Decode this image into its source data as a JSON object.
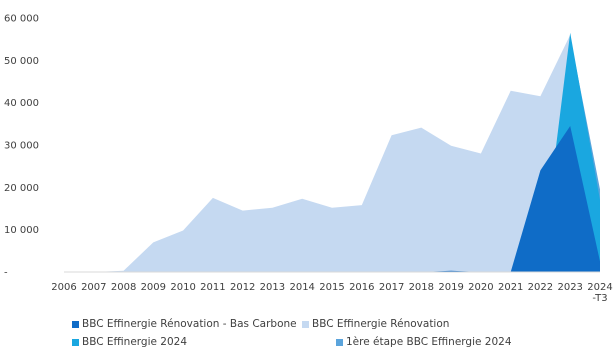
{
  "chart_data": {
    "type": "area",
    "x": [
      "2006",
      "2007",
      "2008",
      "2009",
      "2010",
      "2011",
      "2012",
      "2013",
      "2014",
      "2015",
      "2016",
      "2017",
      "2018",
      "2019",
      "2020",
      "2021",
      "2022",
      "2023",
      "2024\n-T3"
    ],
    "y_ticks": [
      "-",
      "10 000",
      "20 000",
      "30 000",
      "40 000",
      "50 000",
      "60 000"
    ],
    "ylim": [
      0,
      60000
    ],
    "series": [
      {
        "name": "BBC Effinergie Rénovation",
        "color": "#c5d9f1",
        "values": [
          0,
          0,
          300,
          7000,
          9800,
          17500,
          14500,
          15200,
          17300,
          15200,
          15800,
          32300,
          34100,
          29800,
          28000,
          42800,
          41500,
          56000,
          3500
        ]
      },
      {
        "name": "BBC Effinergie Rénovation - Bas Carbone",
        "color": "#0f6cc7",
        "values": [
          0,
          0,
          0,
          0,
          0,
          0,
          0,
          0,
          0,
          0,
          0,
          0,
          0,
          300,
          0,
          0,
          24000,
          34500,
          2500
        ]
      },
      {
        "name": "BBC Effinergie 2024",
        "color": "#1aa7e0",
        "values": [
          0,
          0,
          0,
          0,
          0,
          0,
          0,
          0,
          0,
          0,
          0,
          0,
          0,
          0,
          0,
          0,
          0,
          56500,
          17000
        ]
      },
      {
        "name": "1ère étape BBC Effinergie 2024",
        "color": "#5ba4dc",
        "values": [
          0,
          0,
          0,
          0,
          0,
          0,
          0,
          0,
          0,
          0,
          0,
          0,
          0,
          0,
          0,
          0,
          0,
          55500,
          19500
        ]
      }
    ],
    "legend": [
      "BBC Effinergie Rénovation - Bas Carbone",
      "BBC Effinergie Rénovation",
      "BBC Effinergie 2024",
      "1ère étape BBC Effinergie 2024"
    ],
    "legend_placement": "bottom"
  }
}
